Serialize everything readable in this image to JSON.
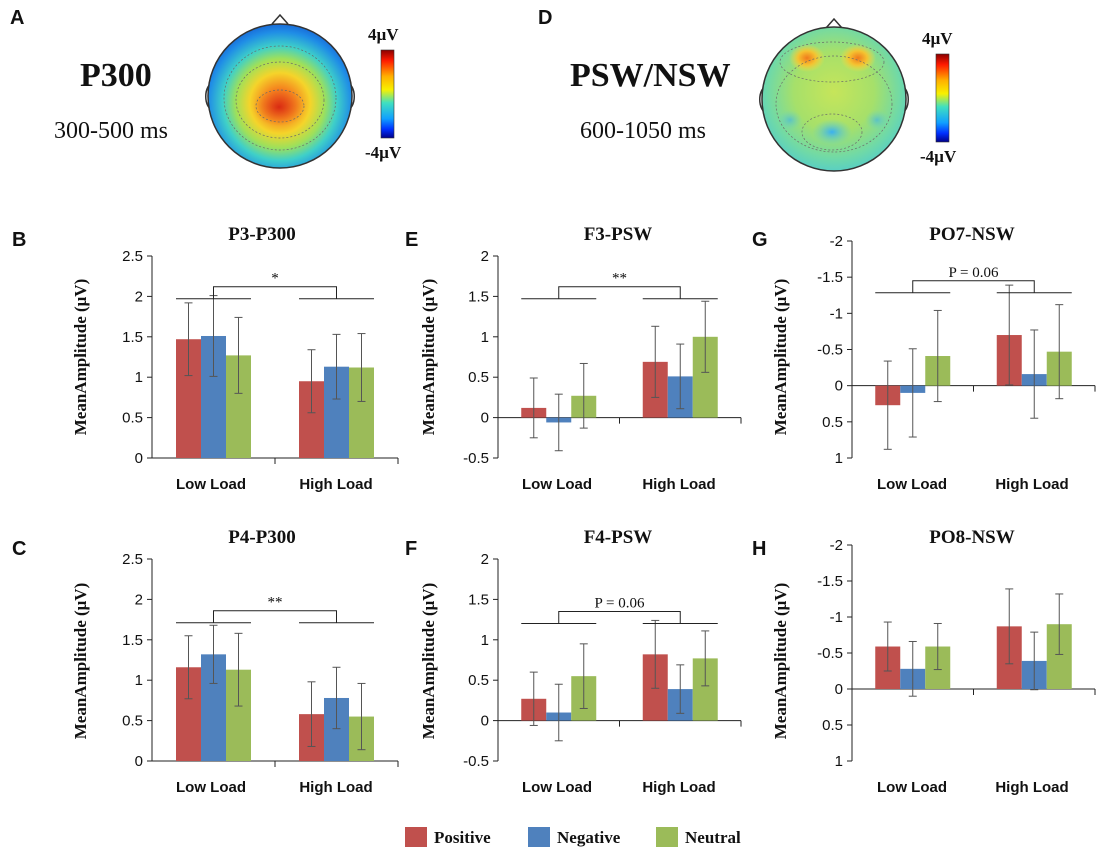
{
  "colors": {
    "positive": "#c0504d",
    "negative": "#4f81bd",
    "neutral": "#9bbb59",
    "axis": "#222222",
    "error": "#555555"
  },
  "topomaps": [
    {
      "panel": "A",
      "title": "P300",
      "time_range": "300-500 ms",
      "scale_max": "4µV",
      "scale_min": "-4µV",
      "pattern": "central"
    },
    {
      "panel": "D",
      "title": "PSW/NSW",
      "time_range": "600-1050 ms",
      "scale_max": "4µV",
      "scale_min": "-4µV",
      "pattern": "frontal"
    }
  ],
  "legend": {
    "items": [
      {
        "label": "Positive",
        "color": "#c0504d"
      },
      {
        "label": "Negative",
        "color": "#4f81bd"
      },
      {
        "label": "Neutral",
        "color": "#9bbb59"
      }
    ]
  },
  "chart_data": [
    {
      "panel": "B",
      "type": "bar",
      "title": "P3-P300",
      "ylabel": "MeanAmplitude (μV)",
      "categories": [
        "Low Load",
        "High Load"
      ],
      "ylim": [
        0,
        2.5
      ],
      "inverted": false,
      "yticks": [
        0,
        0.5,
        1,
        1.5,
        2,
        2.5
      ],
      "ytick_labels": [
        "0",
        "0.5",
        "1",
        "1.5",
        "2",
        "2.5"
      ],
      "series": [
        {
          "name": "Positive",
          "values": [
            1.47,
            0.95
          ],
          "errors": [
            0.45,
            0.39
          ]
        },
        {
          "name": "Negative",
          "values": [
            1.51,
            1.13
          ],
          "errors": [
            0.5,
            0.4
          ]
        },
        {
          "name": "Neutral",
          "values": [
            1.27,
            1.12
          ],
          "errors": [
            0.47,
            0.42
          ]
        }
      ],
      "significance": {
        "label": "*",
        "level": 2.12
      }
    },
    {
      "panel": "E",
      "type": "bar",
      "title": "F3-PSW",
      "ylabel": "MeanAmplitude (μV)",
      "categories": [
        "Low Load",
        "High Load"
      ],
      "ylim": [
        -0.5,
        2
      ],
      "inverted": false,
      "yticks": [
        -0.5,
        0,
        0.5,
        1,
        1.5,
        2
      ],
      "ytick_labels": [
        "-0.5",
        "0",
        "0.5",
        "1",
        "1.5",
        "2"
      ],
      "series": [
        {
          "name": "Positive",
          "values": [
            0.12,
            0.69
          ],
          "errors": [
            0.37,
            0.44
          ]
        },
        {
          "name": "Negative",
          "values": [
            -0.06,
            0.51
          ],
          "errors": [
            0.35,
            0.4
          ]
        },
        {
          "name": "Neutral",
          "values": [
            0.27,
            1.0
          ],
          "errors": [
            0.4,
            0.44
          ]
        }
      ],
      "significance": {
        "label": "**",
        "level": 1.62
      }
    },
    {
      "panel": "G",
      "type": "bar",
      "title": "PO7-NSW",
      "ylabel": "MeanAmplitude (μV)",
      "categories": [
        "Low Load",
        "High Load"
      ],
      "ylim": [
        1,
        -2
      ],
      "inverted": true,
      "yticks": [
        1,
        0.5,
        0,
        -0.5,
        -1,
        -1.5,
        -2
      ],
      "ytick_labels": [
        "1",
        "0.5",
        "0",
        "-0.5",
        "-1",
        "-1.5",
        "-2"
      ],
      "series": [
        {
          "name": "Positive",
          "values": [
            0.27,
            -0.7
          ],
          "errors": [
            0.61,
            0.69
          ]
        },
        {
          "name": "Negative",
          "values": [
            0.1,
            -0.16
          ],
          "errors": [
            0.61,
            0.61
          ]
        },
        {
          "name": "Neutral",
          "values": [
            -0.41,
            -0.47
          ],
          "errors": [
            0.63,
            0.65
          ]
        }
      ],
      "significance": {
        "label": "P = 0.06",
        "level": -1.45
      }
    },
    {
      "panel": "C",
      "type": "bar",
      "title": "P4-P300",
      "ylabel": "MeanAmplitude (μV)",
      "categories": [
        "Low Load",
        "High Load"
      ],
      "ylim": [
        0,
        2.5
      ],
      "inverted": false,
      "yticks": [
        0,
        0.5,
        1,
        1.5,
        2,
        2.5
      ],
      "ytick_labels": [
        "0",
        "0.5",
        "1",
        "1.5",
        "2",
        "2.5"
      ],
      "series": [
        {
          "name": "Positive",
          "values": [
            1.16,
            0.58
          ],
          "errors": [
            0.39,
            0.4
          ]
        },
        {
          "name": "Negative",
          "values": [
            1.32,
            0.78
          ],
          "errors": [
            0.36,
            0.38
          ]
        },
        {
          "name": "Neutral",
          "values": [
            1.13,
            0.55
          ],
          "errors": [
            0.45,
            0.41
          ]
        }
      ],
      "significance": {
        "label": "**",
        "level": 1.86
      }
    },
    {
      "panel": "F",
      "type": "bar",
      "title": "F4-PSW",
      "ylabel": "MeanAmplitude (μV)",
      "categories": [
        "Low Load",
        "High Load"
      ],
      "ylim": [
        -0.5,
        2
      ],
      "inverted": false,
      "yticks": [
        -0.5,
        0,
        0.5,
        1,
        1.5,
        2
      ],
      "ytick_labels": [
        "-0.5",
        "0",
        "0.5",
        "1",
        "1.5",
        "2"
      ],
      "series": [
        {
          "name": "Positive",
          "values": [
            0.27,
            0.82
          ],
          "errors": [
            0.33,
            0.42
          ]
        },
        {
          "name": "Negative",
          "values": [
            0.1,
            0.39
          ],
          "errors": [
            0.35,
            0.3
          ]
        },
        {
          "name": "Neutral",
          "values": [
            0.55,
            0.77
          ],
          "errors": [
            0.4,
            0.34
          ]
        }
      ],
      "significance": {
        "label": "P = 0.06",
        "level": 1.35
      }
    },
    {
      "panel": "H",
      "type": "bar",
      "title": "PO8-NSW",
      "ylabel": "MeanAmplitude (μV)",
      "categories": [
        "Low Load",
        "High Load"
      ],
      "ylim": [
        1,
        -2
      ],
      "inverted": true,
      "yticks": [
        1,
        0.5,
        0,
        -0.5,
        -1,
        -1.5,
        -2
      ],
      "ytick_labels": [
        "1",
        "0.5",
        "0",
        "-0.5",
        "-1",
        "-1.5",
        "-2"
      ],
      "series": [
        {
          "name": "Positive",
          "values": [
            -0.59,
            -0.87
          ],
          "errors": [
            0.34,
            0.52
          ]
        },
        {
          "name": "Negative",
          "values": [
            -0.28,
            -0.39
          ],
          "errors": [
            0.38,
            0.4
          ]
        },
        {
          "name": "Neutral",
          "values": [
            -0.59,
            -0.9
          ],
          "errors": [
            0.32,
            0.42
          ]
        }
      ],
      "significance": null
    }
  ]
}
